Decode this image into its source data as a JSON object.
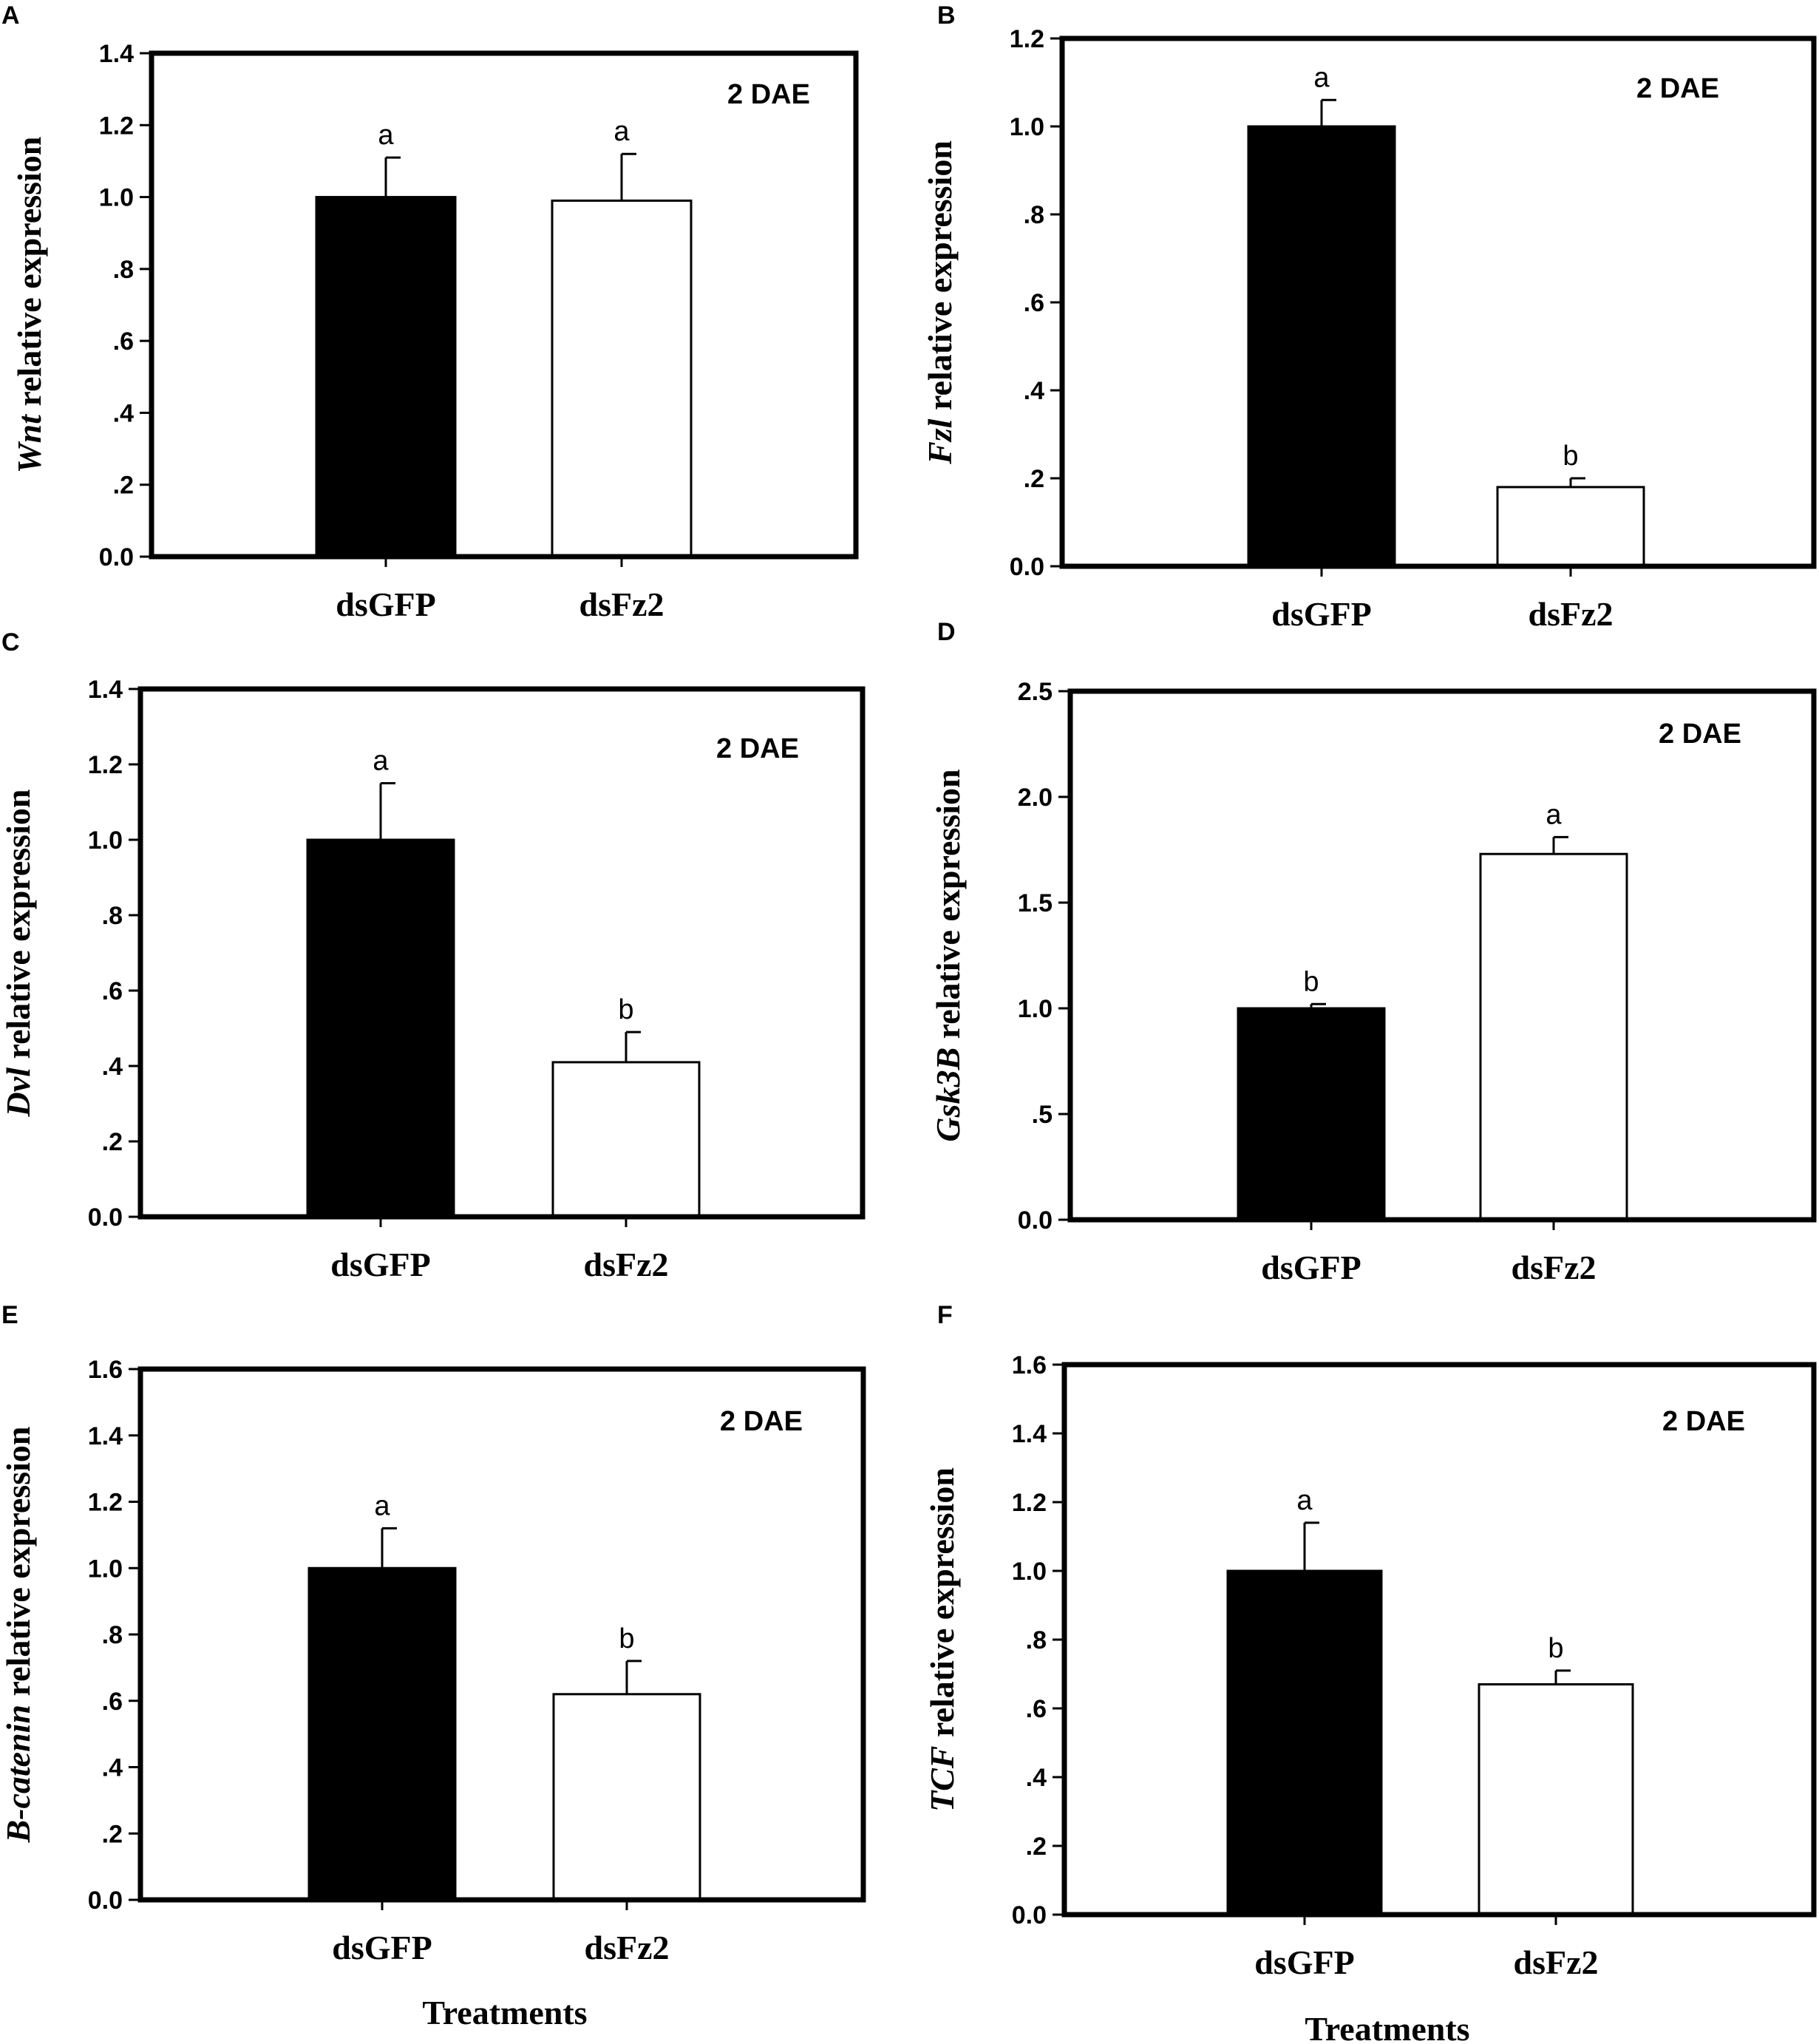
{
  "colors": {
    "control_bar": "#000000",
    "treatment_bar": "#ffffff",
    "axis": "#000000"
  },
  "chart_data": [
    {
      "panel": "A",
      "type": "bar",
      "annotation": "2 DAE",
      "ylabel_gene": "Wnt",
      "ylabel_rest": " relative expression",
      "xlabel": "",
      "ylim": [
        0,
        1.4
      ],
      "ticks": [
        0,
        0.2,
        0.4,
        0.6,
        0.8,
        1.0,
        1.2,
        1.4
      ],
      "tick_labels": [
        "0.0",
        ".2",
        ".4",
        ".6",
        ".8",
        "1.0",
        "1.2",
        "1.4"
      ],
      "categories": [
        "dsGFP",
        "dsFz2"
      ],
      "values": [
        1.0,
        0.99
      ],
      "errors": [
        0.11,
        0.13
      ],
      "letters": [
        "a",
        "a"
      ]
    },
    {
      "panel": "B",
      "type": "bar",
      "annotation": "2 DAE",
      "ylabel_gene": "Fzl",
      "ylabel_rest": " relative expression",
      "xlabel": "",
      "ylim": [
        0,
        1.2
      ],
      "ticks": [
        0,
        0.2,
        0.4,
        0.6,
        0.8,
        1.0,
        1.2
      ],
      "tick_labels": [
        "0.0",
        ".2",
        ".4",
        ".6",
        ".8",
        "1.0",
        "1.2"
      ],
      "categories": [
        "dsGFP",
        "dsFz2"
      ],
      "values": [
        1.0,
        0.18
      ],
      "errors": [
        0.06,
        0.02
      ],
      "letters": [
        "a",
        "b"
      ]
    },
    {
      "panel": "C",
      "type": "bar",
      "annotation": "2 DAE",
      "ylabel_gene": "Dvl",
      "ylabel_rest": " relative expression",
      "xlabel": "",
      "ylim": [
        0,
        1.4
      ],
      "ticks": [
        0,
        0.2,
        0.4,
        0.6,
        0.8,
        1.0,
        1.2,
        1.4
      ],
      "tick_labels": [
        "0.0",
        ".2",
        ".4",
        ".6",
        ".8",
        "1.0",
        "1.2",
        "1.4"
      ],
      "categories": [
        "dsGFP",
        "dsFz2"
      ],
      "values": [
        1.0,
        0.41
      ],
      "errors": [
        0.15,
        0.08
      ],
      "letters": [
        "a",
        "b"
      ]
    },
    {
      "panel": "D",
      "type": "bar",
      "annotation": "2 DAE",
      "ylabel_gene": "Gsk3B",
      "ylabel_rest": " relative expression",
      "xlabel": "",
      "ylim": [
        0,
        2.5
      ],
      "ticks": [
        0,
        0.5,
        1.0,
        1.5,
        2.0,
        2.5
      ],
      "tick_labels": [
        "0.0",
        ".5",
        "1.0",
        "1.5",
        "2.0",
        "2.5"
      ],
      "categories": [
        "dsGFP",
        "dsFz2"
      ],
      "values": [
        1.0,
        1.73
      ],
      "errors": [
        0.02,
        0.08
      ],
      "letters": [
        "b",
        "a"
      ]
    },
    {
      "panel": "E",
      "type": "bar",
      "annotation": "2 DAE",
      "ylabel_gene": "B-catenin",
      "ylabel_rest": " relative expression",
      "xlabel": "Treatments",
      "ylim": [
        0,
        1.6
      ],
      "ticks": [
        0,
        0.2,
        0.4,
        0.6,
        0.8,
        1.0,
        1.2,
        1.4,
        1.6
      ],
      "tick_labels": [
        "0.0",
        ".2",
        ".4",
        ".6",
        ".8",
        "1.0",
        "1.2",
        "1.4",
        "1.6"
      ],
      "categories": [
        "dsGFP",
        "dsFz2"
      ],
      "values": [
        1.0,
        0.62
      ],
      "errors": [
        0.12,
        0.1
      ],
      "letters": [
        "a",
        "b"
      ]
    },
    {
      "panel": "F",
      "type": "bar",
      "annotation": "2 DAE",
      "ylabel_gene": "TCF",
      "ylabel_rest": " relative expression",
      "xlabel": "Treatments",
      "ylim": [
        0,
        1.6
      ],
      "ticks": [
        0,
        0.2,
        0.4,
        0.6,
        0.8,
        1.0,
        1.2,
        1.4,
        1.6
      ],
      "tick_labels": [
        "0.0",
        ".2",
        ".4",
        ".6",
        ".8",
        "1.0",
        "1.2",
        "1.4",
        "1.6"
      ],
      "categories": [
        "dsGFP",
        "dsFz2"
      ],
      "values": [
        1.0,
        0.67
      ],
      "errors": [
        0.14,
        0.04
      ],
      "letters": [
        "a",
        "b"
      ]
    }
  ]
}
